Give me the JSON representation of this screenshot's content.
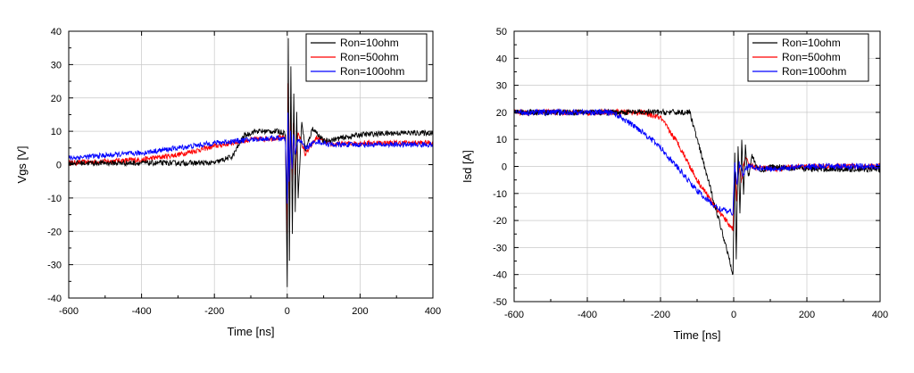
{
  "chart_data": [
    {
      "type": "line",
      "xlabel": "Time [ns]",
      "ylabel": "Vgs [V]",
      "xlim": [
        -600,
        400
      ],
      "ylim": [
        -40,
        40
      ],
      "xticks": [
        -600,
        -400,
        -200,
        0,
        200,
        400
      ],
      "yticks": [
        -40,
        -30,
        -20,
        -10,
        0,
        10,
        20,
        30,
        40
      ],
      "grid": true,
      "legend_position": "top-right",
      "series": [
        {
          "name": "Ron=10ohm",
          "color": "#000000",
          "x": [
            -600,
            -400,
            -200,
            -150,
            -120,
            -90,
            -30,
            -5,
            0,
            3,
            6,
            10,
            14,
            18,
            22,
            26,
            30,
            40,
            50,
            70,
            100,
            200,
            300,
            400
          ],
          "y": [
            0.5,
            0.5,
            0.5,
            2.5,
            8.5,
            10,
            10,
            9.5,
            -37,
            38,
            -29,
            30,
            -20,
            22,
            -14,
            16,
            -10,
            13,
            4,
            11,
            7,
            9,
            9.5,
            9.5
          ]
        },
        {
          "name": "Ron=50ohm",
          "color": "#ff0000",
          "x": [
            -600,
            -400,
            -300,
            -200,
            -100,
            -30,
            -5,
            0,
            2,
            5,
            9,
            13,
            17,
            22,
            30,
            50,
            80,
            120,
            200,
            300,
            400
          ],
          "y": [
            0.5,
            1.5,
            3,
            5.5,
            7.5,
            8,
            8,
            -21,
            24,
            -10,
            16,
            -5,
            12,
            -3,
            10,
            3,
            8,
            6,
            6.5,
            6.5,
            6.5
          ]
        },
        {
          "name": "Ron=100ohm",
          "color": "#0000ff",
          "x": [
            -600,
            -400,
            -300,
            -200,
            -100,
            -30,
            -5,
            0,
            2,
            5,
            9,
            13,
            17,
            22,
            30,
            50,
            80,
            120,
            200,
            300,
            400
          ],
          "y": [
            2,
            3.5,
            5,
            6.5,
            7.5,
            8,
            7.5,
            -12,
            15,
            -5,
            10,
            -2,
            9,
            3,
            8,
            5,
            7,
            6,
            6,
            6,
            6
          ]
        }
      ]
    },
    {
      "type": "line",
      "xlabel": "Time [ns]",
      "ylabel": "Isd [A]",
      "xlim": [
        -600,
        400
      ],
      "ylim": [
        -50,
        50
      ],
      "xticks": [
        -600,
        -400,
        -200,
        0,
        200,
        400
      ],
      "yticks": [
        -50,
        -40,
        -30,
        -20,
        -10,
        0,
        10,
        20,
        30,
        40,
        50
      ],
      "grid": true,
      "legend_position": "top-right",
      "series": [
        {
          "name": "Ron=10ohm",
          "color": "#000000",
          "x": [
            -600,
            -400,
            -200,
            -120,
            -80,
            -40,
            -10,
            -2,
            3,
            7,
            12,
            17,
            22,
            27,
            32,
            40,
            50,
            70,
            100,
            200,
            400
          ],
          "y": [
            20,
            20,
            20,
            20,
            0,
            -20,
            -35,
            -40,
            4,
            -35,
            8,
            -18,
            10,
            -10,
            7,
            -4,
            4,
            -2,
            0,
            -1,
            -1
          ]
        },
        {
          "name": "Ron=50ohm",
          "color": "#ff0000",
          "x": [
            -600,
            -400,
            -250,
            -200,
            -150,
            -100,
            -50,
            -10,
            -2,
            3,
            8,
            13,
            20,
            30,
            50,
            100,
            200,
            400
          ],
          "y": [
            20,
            20,
            20,
            18,
            8,
            -5,
            -15,
            -22,
            -23,
            0,
            -12,
            2,
            -6,
            3,
            0,
            -1,
            0,
            0
          ]
        },
        {
          "name": "Ron=100ohm",
          "color": "#0000ff",
          "x": [
            -600,
            -400,
            -330,
            -250,
            -200,
            -150,
            -100,
            -50,
            -10,
            -2,
            3,
            8,
            15,
            25,
            40,
            100,
            200,
            400
          ],
          "y": [
            20,
            20,
            20,
            13,
            7,
            -1,
            -9,
            -15,
            -17,
            -17,
            1,
            -7,
            1,
            -3,
            0,
            -1,
            0,
            0
          ]
        }
      ]
    }
  ]
}
